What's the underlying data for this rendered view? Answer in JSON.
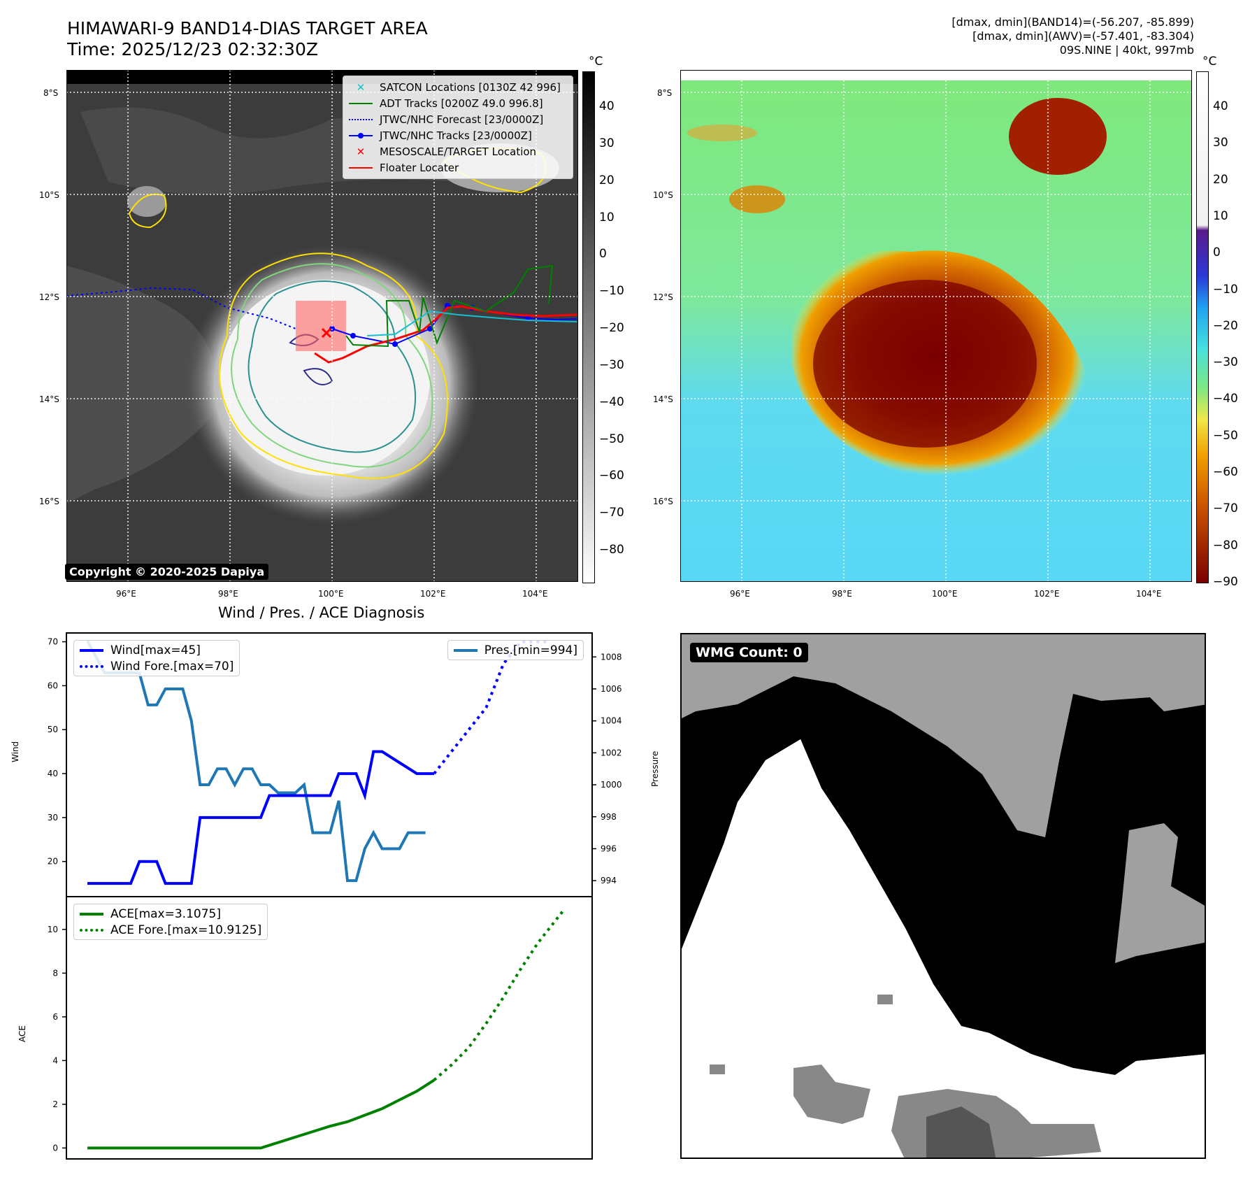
{
  "header": {
    "title_line1": "HIMAWARI-9 BAND14-DIAS TARGET AREA",
    "title_line2": "Time: 2025/12/23 02:32:30Z",
    "right_line1": "[dmax, dmin](BAND14)=(-56.207, -85.899)",
    "right_line2": "[dmax, dmin](AWV)=(-57.401, -83.304)",
    "right_line3": "09S.NINE | 40kt, 997mb"
  },
  "map_panel": {
    "legend": [
      {
        "label": "SATCON Locations [0130Z 42 996]",
        "icon": "x-marker",
        "color": "#17becf"
      },
      {
        "label": "ADT Tracks [0200Z 49.0 996.8]",
        "icon": "solid-line",
        "color": "#008000"
      },
      {
        "label": "JTWC/NHC Forecast [23/0000Z]",
        "icon": "dotted-line",
        "color": "#0000ff"
      },
      {
        "label": "JTWC/NHC Tracks [23/0000Z]",
        "icon": "line-dot",
        "color": "#0000ff"
      },
      {
        "label": "MESOSCALE/TARGET Location",
        "icon": "x-marker",
        "color": "#ff0000"
      },
      {
        "label": "Floater Locater",
        "icon": "solid-line",
        "color": "#ff0000"
      }
    ],
    "copyright": "Copyright © 2020-2025 Dapiya",
    "lat_labels": [
      "8°S",
      "10°S",
      "12°S",
      "14°S",
      "16°S"
    ],
    "lon_labels": [
      "96°E",
      "98°E",
      "100°E",
      "102°E",
      "104°E"
    ],
    "colorbar_unit": "°C",
    "gray_colorbar_ticks": [
      "40",
      "30",
      "20",
      "10",
      "0",
      "−10",
      "−20",
      "−30",
      "−40",
      "−50",
      "−60",
      "−70",
      "−80"
    ],
    "color_colorbar_ticks": [
      "40",
      "30",
      "20",
      "10",
      "0",
      "−10",
      "−20",
      "−30",
      "−40",
      "−50",
      "−60",
      "−70",
      "−80",
      "−90"
    ]
  },
  "chart_data": [
    {
      "type": "line",
      "title": "Wind / Pres. / ACE Diagnosis",
      "ylabel": "Wind",
      "ylabel_right": "Pressure",
      "ylim": [
        12,
        72
      ],
      "ylim_right": [
        993,
        1009.5
      ],
      "yticks": [
        20,
        30,
        40,
        50,
        60,
        70
      ],
      "yticks_right": [
        994,
        996,
        998,
        1000,
        1002,
        1004,
        1006,
        1008
      ],
      "legend_left": [
        "Wind[max=45]",
        "Wind Fore.[max=70]"
      ],
      "legend_right": [
        "Pres.[min=994]"
      ],
      "series": [
        {
          "name": "Wind[max=45]",
          "style": "solid",
          "color": "#0000ff",
          "axis": "left",
          "x": [
            0,
            5,
            6,
            8,
            9,
            12,
            13,
            15,
            16,
            17,
            20,
            21,
            23,
            24,
            27,
            28,
            29,
            30,
            31,
            32,
            33,
            34,
            38,
            40
          ],
          "y": [
            15,
            15,
            20,
            20,
            15,
            15,
            30,
            30,
            30,
            30,
            30,
            35,
            35,
            35,
            35,
            35,
            40,
            40,
            40,
            35,
            45,
            45,
            40,
            40
          ]
        },
        {
          "name": "Wind Fore.[max=70]",
          "style": "dotted",
          "color": "#0000ff",
          "axis": "left",
          "x": [
            40,
            42,
            44,
            46,
            47,
            48,
            50,
            52,
            53
          ],
          "y": [
            40,
            45,
            50,
            55,
            60,
            65,
            70,
            70,
            70
          ]
        },
        {
          "name": "Pres.[min=994]",
          "style": "solid",
          "color": "#1f77b4",
          "axis": "right",
          "x": [
            0,
            1,
            2,
            3,
            4,
            5,
            6,
            7,
            8,
            9,
            10,
            11,
            12,
            13,
            14,
            15,
            16,
            17,
            18,
            19,
            20,
            21,
            22,
            23,
            24,
            25,
            26,
            27,
            28,
            29,
            30,
            31,
            32,
            33,
            34,
            35,
            36,
            37,
            38,
            39
          ],
          "y": [
            1009,
            1008,
            1007,
            1007,
            1007,
            1007,
            1007,
            1005,
            1005,
            1006,
            1006,
            1006,
            1004,
            1000,
            1000,
            1001,
            1001,
            1000,
            1001,
            1001,
            1000,
            1000,
            999.5,
            999.5,
            999.5,
            1000,
            997,
            997,
            997,
            999,
            994,
            994,
            996,
            997,
            996,
            996,
            996,
            997,
            997,
            997
          ]
        }
      ]
    },
    {
      "type": "line",
      "ylabel": "ACE",
      "ylim": [
        -0.5,
        11.5
      ],
      "yticks": [
        0,
        2,
        4,
        6,
        8,
        10
      ],
      "legend": [
        "ACE[max=3.1075]",
        "ACE Fore.[max=10.9125]"
      ],
      "series": [
        {
          "name": "ACE[max=3.1075]",
          "style": "solid",
          "color": "#008000",
          "x": [
            0,
            4,
            8,
            12,
            16,
            20,
            24,
            28,
            30,
            32,
            34,
            36,
            38,
            40
          ],
          "y": [
            0,
            0,
            0,
            0,
            0,
            0,
            0.5,
            1.0,
            1.2,
            1.5,
            1.8,
            2.2,
            2.6,
            3.1075
          ]
        },
        {
          "name": "ACE Fore.[max=10.9125]",
          "style": "dotted",
          "color": "#008000",
          "x": [
            40,
            42,
            44,
            46,
            48,
            50,
            52,
            55
          ],
          "y": [
            3.1075,
            3.8,
            4.6,
            5.7,
            6.9,
            8.2,
            9.4,
            10.9125
          ]
        }
      ]
    }
  ],
  "wmg_panel": {
    "label": "WMG Count: 0"
  }
}
